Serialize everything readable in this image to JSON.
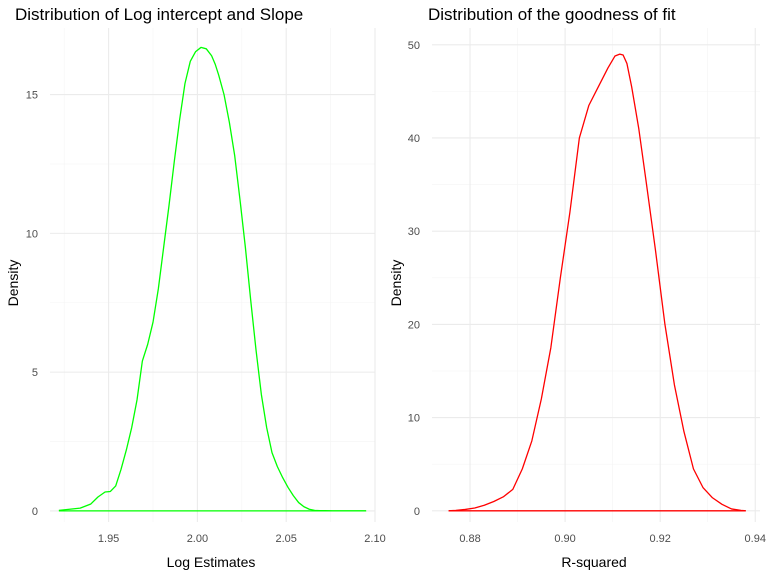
{
  "chart_data": [
    {
      "type": "line",
      "title": "Distribution of Log intercept and Slope",
      "xlabel": "Log Estimates",
      "ylabel": "Density",
      "xlim": [
        1.917,
        2.1
      ],
      "ylim": [
        -0.4,
        17.4
      ],
      "x_ticks": [
        "1.95",
        "2.00",
        "2.05",
        "2.10"
      ],
      "y_ticks": [
        "0",
        "5",
        "10",
        "15"
      ],
      "grid": true,
      "color": "#00ff00",
      "series": [
        {
          "x": [
            1.922,
            1.928,
            1.934,
            1.94,
            1.944,
            1.948,
            1.951,
            1.954,
            1.957,
            1.96,
            1.963,
            1.966,
            1.969,
            1.972,
            1.975,
            1.978,
            1.981,
            1.984,
            1.987,
            1.99,
            1.993,
            1.996,
            1.999,
            2.002,
            2.005,
            2.008,
            2.01,
            2.012,
            2.015,
            2.018,
            2.021,
            2.024,
            2.027,
            2.03,
            2.033,
            2.036,
            2.039,
            2.042,
            2.045,
            2.048,
            2.051,
            2.054,
            2.057,
            2.06,
            2.063,
            2.066,
            2.069,
            2.072,
            2.076,
            2.08,
            2.085,
            2.09,
            2.095
          ],
          "y": [
            0.02,
            0.06,
            0.1,
            0.25,
            0.5,
            0.68,
            0.7,
            0.9,
            1.5,
            2.2,
            3.0,
            4.0,
            5.4,
            6.0,
            6.8,
            8.0,
            9.5,
            11.0,
            12.6,
            14.1,
            15.4,
            16.2,
            16.55,
            16.7,
            16.65,
            16.4,
            16.1,
            15.7,
            15.0,
            14.0,
            12.8,
            11.2,
            9.5,
            7.6,
            5.8,
            4.2,
            3.0,
            2.1,
            1.6,
            1.2,
            0.85,
            0.55,
            0.3,
            0.15,
            0.06,
            0.02,
            0.01,
            0.01,
            0.0,
            0.0,
            0.0,
            0.0,
            0.0
          ]
        }
      ]
    },
    {
      "type": "line",
      "title": "Distribution of the goodness of fit",
      "xlabel": "R-squared",
      "ylabel": "Density",
      "xlim": [
        0.872,
        0.941
      ],
      "ylim": [
        -1.2,
        51.8
      ],
      "x_ticks": [
        "0.88",
        "0.90",
        "0.92",
        "0.94"
      ],
      "y_ticks": [
        "0",
        "10",
        "20",
        "30",
        "40",
        "50"
      ],
      "grid": true,
      "color": "#ff0000",
      "series": [
        {
          "x": [
            0.8755,
            0.877,
            0.879,
            0.881,
            0.883,
            0.885,
            0.887,
            0.889,
            0.891,
            0.893,
            0.895,
            0.897,
            0.899,
            0.901,
            0.903,
            0.905,
            0.907,
            0.909,
            0.9105,
            0.9115,
            0.9122,
            0.913,
            0.914,
            0.9155,
            0.917,
            0.919,
            0.921,
            0.923,
            0.925,
            0.927,
            0.929,
            0.931,
            0.933,
            0.935,
            0.937,
            0.938
          ],
          "y": [
            0.0,
            0.05,
            0.15,
            0.3,
            0.6,
            1.0,
            1.5,
            2.3,
            4.5,
            7.5,
            12.0,
            17.5,
            25.0,
            32.0,
            40.0,
            43.5,
            45.5,
            47.5,
            48.8,
            49.0,
            48.9,
            48.0,
            45.5,
            41.0,
            35.5,
            28.0,
            20.0,
            13.5,
            8.5,
            4.5,
            2.5,
            1.4,
            0.7,
            0.2,
            0.05,
            0.0
          ]
        }
      ]
    }
  ]
}
